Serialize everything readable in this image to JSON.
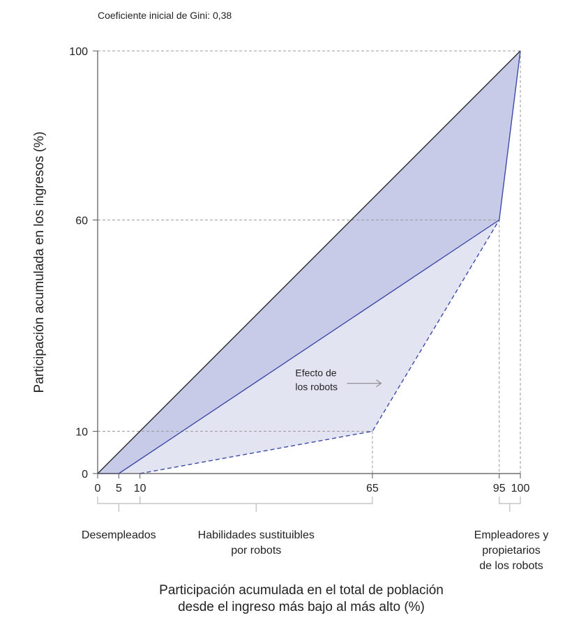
{
  "chart_data": {
    "type": "line",
    "subtitle": "Coeficiente inicial de Gini: 0,38",
    "xlabel_lines": [
      "Participación acumulada en el total de población",
      "desde el ingreso más bajo al más alto (%)"
    ],
    "ylabel": "Participación acumulada en los ingresos (%)",
    "xlim": [
      0,
      100
    ],
    "ylim": [
      0,
      100
    ],
    "x_ticks": [
      0,
      5,
      10,
      65,
      95,
      100
    ],
    "y_ticks": [
      0,
      10,
      60,
      100
    ],
    "grid": "dashed reference lines at key points",
    "series": [
      {
        "x": [
          0,
          100
        ],
        "y": [
          0,
          100
        ],
        "style": "equality line",
        "color": "#2b2b2b"
      },
      {
        "x": [
          0,
          5,
          95,
          100
        ],
        "y": [
          0,
          0,
          60,
          100
        ],
        "style": "solid",
        "color": "#3d4aa8"
      },
      {
        "x": [
          10,
          65,
          95
        ],
        "y": [
          0,
          10,
          60
        ],
        "style": "dashed",
        "color": "#3d4aa8"
      }
    ],
    "fill_colors": {
      "initial_inequality": "#c8cbe8",
      "robot_effect": "#e3e4f2"
    },
    "annotation": {
      "lines": [
        "Efecto de",
        "los robots"
      ],
      "x": 56,
      "y": 22
    },
    "groups": [
      {
        "lines": [
          "Desempleados"
        ],
        "from": 0,
        "to": 10
      },
      {
        "lines": [
          "Habilidades sustituibles",
          "por robots"
        ],
        "from": 10,
        "to": 65
      },
      {
        "lines": [
          "Empleadores y",
          "propietarios",
          "de los robots"
        ],
        "from": 95,
        "to": 100
      }
    ]
  }
}
